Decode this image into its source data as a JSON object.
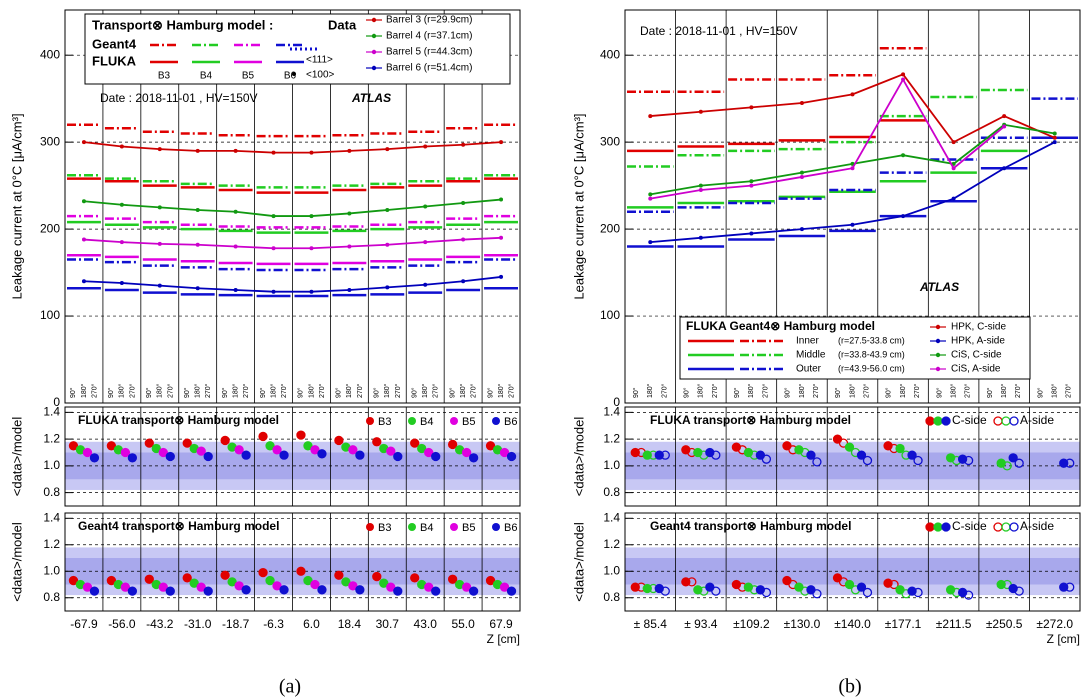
{
  "chart_data": [
    {
      "type": "line",
      "ylabel": "Leakage current at 0°C [μA/cm³]",
      "ylim": [
        0,
        452
      ],
      "yticks": [
        0,
        100,
        200,
        300,
        400
      ],
      "grid": true,
      "legend_title": "Transport⊗ Hamburg model :",
      "legend_data_title": "Data",
      "model_labels": [
        "Geant4",
        "FLUKA"
      ],
      "barrel_labels": [
        "B3",
        "B4",
        "B5",
        "B6"
      ],
      "markers": [
        "<111>",
        "<100>"
      ],
      "date": "Date : 2018-11-01 ,  HV=150V",
      "atlas": "ATLAS",
      "models": [
        {
          "style": "dashdot",
          "color": "#e00000",
          "values": [
            320,
            316,
            312,
            310,
            308,
            307,
            307,
            308,
            310,
            312,
            316,
            320
          ]
        },
        {
          "style": "dashdot",
          "color": "#22cc22",
          "values": [
            262,
            258,
            255,
            252,
            250,
            248,
            248,
            250,
            252,
            255,
            258,
            262
          ]
        },
        {
          "style": "dashdot",
          "color": "#e000e0",
          "values": [
            215,
            212,
            208,
            205,
            203,
            202,
            202,
            203,
            205,
            208,
            212,
            215
          ]
        },
        {
          "style": "dashdot",
          "color": "#1010d0",
          "values": [
            165,
            162,
            158,
            156,
            154,
            153,
            153,
            154,
            156,
            158,
            162,
            165
          ]
        },
        {
          "style": "solid",
          "color": "#e00000",
          "values": [
            258,
            255,
            250,
            248,
            245,
            242,
            242,
            245,
            248,
            250,
            255,
            258
          ]
        },
        {
          "style": "solid",
          "color": "#22cc22",
          "values": [
            208,
            205,
            202,
            200,
            198,
            196,
            196,
            198,
            200,
            202,
            205,
            208
          ]
        },
        {
          "style": "solid",
          "color": "#e000e0",
          "values": [
            170,
            168,
            165,
            163,
            161,
            160,
            160,
            161,
            163,
            165,
            168,
            170
          ]
        },
        {
          "style": "solid",
          "color": "#1010d0",
          "values": [
            132,
            130,
            127,
            125,
            124,
            123,
            123,
            124,
            125,
            127,
            130,
            132
          ]
        }
      ],
      "series": [
        {
          "name": "Barrel 3 (r=29.9cm)",
          "color": "#cc0000",
          "values": [
            300,
            295,
            292,
            290,
            290,
            288,
            288,
            290,
            292,
            295,
            297,
            300
          ]
        },
        {
          "name": "Barrel 4 (r=37.1cm)",
          "color": "#119911",
          "values": [
            232,
            228,
            225,
            222,
            220,
            215,
            215,
            218,
            222,
            226,
            230,
            234
          ]
        },
        {
          "name": "Barrel 5 (r=44.3cm)",
          "color": "#cc00cc",
          "values": [
            188,
            185,
            183,
            182,
            180,
            178,
            178,
            180,
            182,
            185,
            188,
            190
          ]
        },
        {
          "name": "Barrel 6 (r=51.4cm)",
          "color": "#0000bb",
          "values": [
            140,
            138,
            135,
            132,
            130,
            128,
            128,
            130,
            133,
            136,
            140,
            145
          ]
        }
      ]
    },
    {
      "type": "scatter",
      "ylabel": "<data>/model",
      "ylim": [
        0.7,
        1.44
      ],
      "yticks": [
        0.8,
        {
          "value": 1,
          "label": "1.0"
        },
        1.2,
        1.4
      ],
      "grid": true,
      "bands": [
        {
          "range": [
            0.82,
            1.18
          ],
          "color": "#c8c8f4"
        },
        {
          "range": [
            0.9,
            1.1
          ],
          "color": "#a8a8ec"
        }
      ],
      "legend_title": "FLUKA transport⊗ Hamburg model",
      "series": [
        {
          "name": "B3",
          "color": "#e00000",
          "values": [
            1.15,
            1.15,
            1.17,
            1.17,
            1.19,
            1.22,
            1.23,
            1.19,
            1.18,
            1.17,
            1.16,
            1.15
          ]
        },
        {
          "name": "B4",
          "color": "#22cc22",
          "values": [
            1.12,
            1.12,
            1.13,
            1.13,
            1.14,
            1.15,
            1.15,
            1.14,
            1.13,
            1.13,
            1.12,
            1.12
          ]
        },
        {
          "name": "B5",
          "color": "#e000e0",
          "values": [
            1.1,
            1.1,
            1.1,
            1.11,
            1.12,
            1.12,
            1.12,
            1.12,
            1.11,
            1.1,
            1.1,
            1.1
          ]
        },
        {
          "name": "B6",
          "color": "#1010d0",
          "values": [
            1.06,
            1.06,
            1.07,
            1.07,
            1.08,
            1.08,
            1.09,
            1.08,
            1.07,
            1.07,
            1.06,
            1.07
          ]
        }
      ]
    },
    {
      "type": "scatter",
      "ylabel": "<data>/model",
      "ylim": [
        0.7,
        1.44
      ],
      "yticks": [
        0.8,
        {
          "value": 1,
          "label": "1.0"
        },
        1.2,
        1.4
      ],
      "grid": true,
      "bands": [
        {
          "range": [
            0.82,
            1.18
          ],
          "color": "#c8c8f4"
        },
        {
          "range": [
            0.9,
            1.1
          ],
          "color": "#a8a8ec"
        }
      ],
      "legend_title": "Geant4 transport⊗ Hamburg model",
      "categories": [
        "-67.9",
        "-56.0",
        "-43.2",
        "-31.0",
        "-18.7",
        "-6.3",
        "6.0",
        "18.4",
        "30.7",
        "43.0",
        "55.0",
        "67.9"
      ],
      "xlabel": "Z [cm]",
      "series": [
        {
          "name": "B3",
          "color": "#e00000",
          "values": [
            0.93,
            0.93,
            0.94,
            0.95,
            0.97,
            0.99,
            1.0,
            0.97,
            0.96,
            0.95,
            0.94,
            0.93
          ]
        },
        {
          "name": "B4",
          "color": "#22cc22",
          "values": [
            0.9,
            0.9,
            0.9,
            0.91,
            0.92,
            0.93,
            0.93,
            0.92,
            0.91,
            0.9,
            0.9,
            0.9
          ]
        },
        {
          "name": "B5",
          "color": "#e000e0",
          "values": [
            0.88,
            0.88,
            0.88,
            0.88,
            0.89,
            0.89,
            0.9,
            0.89,
            0.88,
            0.88,
            0.88,
            0.88
          ]
        },
        {
          "name": "B6",
          "color": "#1010d0",
          "values": [
            0.85,
            0.85,
            0.85,
            0.85,
            0.86,
            0.86,
            0.86,
            0.86,
            0.85,
            0.85,
            0.85,
            0.85
          ]
        }
      ]
    },
    {
      "type": "line",
      "ylabel": "Leakage current at 0°C [μA/cm³]",
      "ylim": [
        0,
        452
      ],
      "yticks": [
        0,
        100,
        200,
        300,
        400
      ],
      "grid": true,
      "legend_title": "FLUKA Geant4⊗ Hamburg model",
      "layer_names": [
        "Inner",
        "Middle",
        "Outer"
      ],
      "layer_radii": [
        "(r=27.5-33.8 cm)",
        "(r=33.8-43.9 cm)",
        "(r=43.9-56.0 cm)"
      ],
      "date": "Date : 2018-11-01 ,  HV=150V",
      "atlas": "ATLAS",
      "models": [
        {
          "style": "solid",
          "color": "#e00000",
          "values": [
            290,
            295,
            298,
            302,
            306,
            325,
            null,
            null,
            null
          ]
        },
        {
          "style": "dashdot",
          "color": "#e00000",
          "values": [
            358,
            358,
            372,
            372,
            377,
            408,
            null,
            null,
            null
          ]
        },
        {
          "style": "solid",
          "color": "#22cc22",
          "values": [
            225,
            230,
            232,
            237,
            243,
            255,
            265,
            290,
            null
          ]
        },
        {
          "style": "dashdot",
          "color": "#22cc22",
          "values": [
            272,
            285,
            290,
            292,
            300,
            330,
            352,
            360,
            null
          ]
        },
        {
          "style": "solid",
          "color": "#1010d0",
          "values": [
            180,
            180,
            188,
            192,
            198,
            215,
            232,
            270,
            305
          ]
        },
        {
          "style": "dashdot",
          "color": "#1010d0",
          "values": [
            220,
            225,
            230,
            235,
            245,
            265,
            280,
            305,
            350
          ]
        }
      ],
      "series": [
        {
          "name": "HPK, C-side",
          "color": "#cc0000",
          "values": [
            330,
            335,
            340,
            345,
            355,
            378,
            300,
            330,
            305
          ]
        },
        {
          "name": "HPK, A-side",
          "color": "#0000bb",
          "values": [
            185,
            190,
            195,
            200,
            205,
            215,
            235,
            270,
            300
          ]
        },
        {
          "name": "CiS,  C-side",
          "color": "#119911",
          "values": [
            240,
            250,
            255,
            265,
            275,
            285,
            275,
            320,
            310
          ]
        },
        {
          "name": "CiS,  A-side",
          "color": "#cc00cc",
          "values": [
            235,
            245,
            250,
            260,
            270,
            372,
            270,
            318,
            null
          ]
        }
      ]
    },
    {
      "type": "scatter",
      "ylabel": "<data>/model",
      "ylim": [
        0.7,
        1.44
      ],
      "yticks": [
        0.8,
        {
          "value": 1,
          "label": "1.0"
        },
        1.2,
        1.4
      ],
      "grid": true,
      "bands": [
        {
          "range": [
            0.82,
            1.18
          ],
          "color": "#c8c8f4"
        },
        {
          "range": [
            0.9,
            1.1
          ],
          "color": "#a8a8ec"
        }
      ],
      "legend_title": "FLUKA transport⊗ Hamburg model",
      "side_labels": [
        "C-side",
        "A-side"
      ],
      "series": [
        {
          "color": "#e00000",
          "filled": true,
          "values": [
            1.1,
            1.12,
            1.14,
            1.15,
            1.2,
            1.15,
            null,
            null,
            null
          ]
        },
        {
          "color": "#e00000",
          "filled": false,
          "values": [
            1.1,
            1.1,
            1.12,
            1.12,
            1.17,
            1.13,
            null,
            null,
            null
          ]
        },
        {
          "color": "#22cc22",
          "filled": true,
          "values": [
            1.08,
            1.1,
            1.1,
            1.12,
            1.14,
            1.13,
            1.06,
            1.02,
            null
          ]
        },
        {
          "color": "#22cc22",
          "filled": false,
          "values": [
            1.08,
            1.08,
            1.08,
            1.1,
            1.1,
            1.08,
            1.04,
            1.0,
            null
          ]
        },
        {
          "color": "#1010d0",
          "filled": true,
          "values": [
            1.08,
            1.1,
            1.08,
            1.08,
            1.08,
            1.08,
            1.05,
            1.06,
            1.02
          ]
        },
        {
          "color": "#1010d0",
          "filled": false,
          "values": [
            1.08,
            1.08,
            1.05,
            1.03,
            1.04,
            1.04,
            1.04,
            1.02,
            1.02
          ]
        }
      ]
    },
    {
      "type": "scatter",
      "ylabel": "<data>/model",
      "ylim": [
        0.7,
        1.44
      ],
      "yticks": [
        0.8,
        {
          "value": 1,
          "label": "1.0"
        },
        1.2,
        1.4
      ],
      "grid": true,
      "bands": [
        {
          "range": [
            0.82,
            1.18
          ],
          "color": "#c8c8f4"
        },
        {
          "range": [
            0.9,
            1.1
          ],
          "color": "#a8a8ec"
        }
      ],
      "legend_title": "Geant4 transport⊗ Hamburg model",
      "side_labels": [
        "C-side",
        "A-side"
      ],
      "categories": [
        "± 85.4",
        "± 93.4",
        "±109.2",
        "±130.0",
        "±140.0",
        "±177.1",
        "±211.5",
        "±250.5",
        "±272.0"
      ],
      "xlabel": "Z [cm]",
      "series": [
        {
          "color": "#e00000",
          "filled": true,
          "values": [
            0.88,
            0.92,
            0.9,
            0.93,
            0.95,
            0.91,
            null,
            null,
            null
          ]
        },
        {
          "color": "#e00000",
          "filled": false,
          "values": [
            0.88,
            0.92,
            0.88,
            0.9,
            0.92,
            0.9,
            null,
            null,
            null
          ]
        },
        {
          "color": "#22cc22",
          "filled": true,
          "values": [
            0.87,
            0.86,
            0.88,
            0.88,
            0.9,
            0.86,
            0.86,
            0.9,
            null
          ]
        },
        {
          "color": "#22cc22",
          "filled": false,
          "values": [
            0.87,
            0.85,
            0.86,
            0.85,
            0.86,
            0.83,
            0.84,
            0.9,
            null
          ]
        },
        {
          "color": "#1010d0",
          "filled": true,
          "values": [
            0.87,
            0.88,
            0.86,
            0.86,
            0.88,
            0.85,
            0.84,
            0.87,
            0.88
          ]
        },
        {
          "color": "#1010d0",
          "filled": false,
          "values": [
            0.85,
            0.85,
            0.84,
            0.83,
            0.84,
            0.84,
            0.82,
            0.85,
            0.88
          ]
        }
      ]
    }
  ],
  "phi_labels": [
    "90°",
    "180°",
    "270°"
  ],
  "captions": [
    "(a)",
    "(b)"
  ]
}
